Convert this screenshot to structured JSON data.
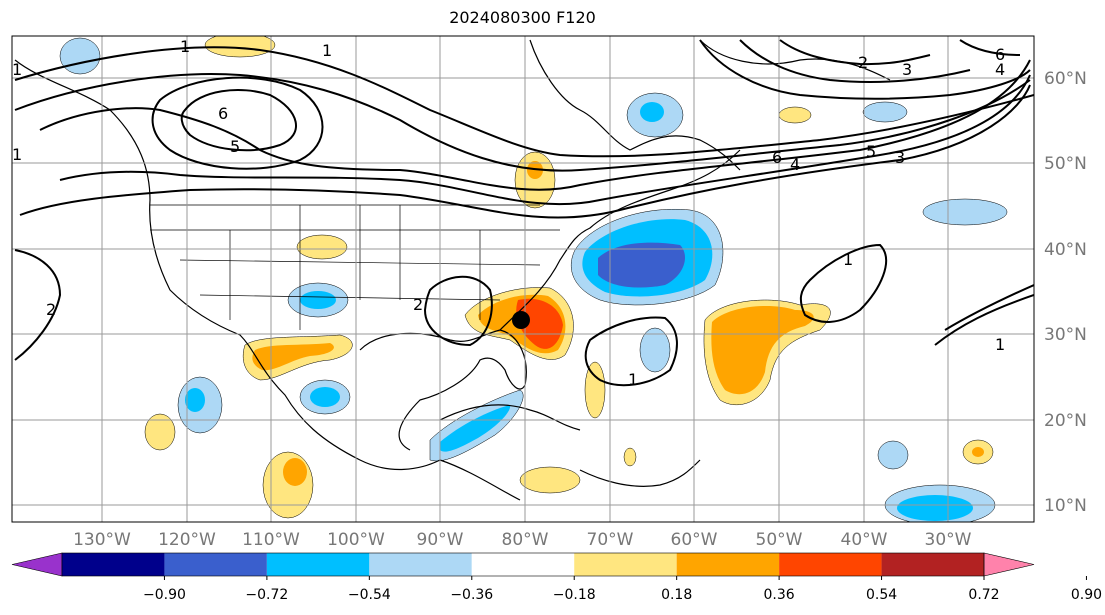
{
  "title": "2024080300 F120",
  "lon_labels": [
    "130°W",
    "120°W",
    "110°W",
    "100°W",
    "90°W",
    "80°W",
    "70°W",
    "60°W",
    "50°W",
    "40°W",
    "30°W"
  ],
  "lat_labels": [
    "10°N",
    "20°N",
    "30°N",
    "40°N",
    "50°N",
    "60°N"
  ],
  "colorbar": {
    "ticks": [
      "−0.90",
      "−0.72",
      "−0.54",
      "−0.36",
      "−0.18",
      "0.18",
      "0.36",
      "0.54",
      "0.72",
      "0.90"
    ],
    "colors": [
      "#9932cc",
      "#00008b",
      "#3a5fcd",
      "#00bfff",
      "#add8f5",
      "#ffffff",
      "#ffe680",
      "#ffa500",
      "#ff4500",
      "#b22222",
      "#ff82ab"
    ]
  },
  "contour_labels": [
    "1",
    "1",
    "1",
    "6",
    "5",
    "2",
    "3",
    "4",
    "6",
    "6",
    "4",
    "5",
    "3",
    "1",
    "1",
    "2",
    "1",
    "2",
    "1"
  ]
}
